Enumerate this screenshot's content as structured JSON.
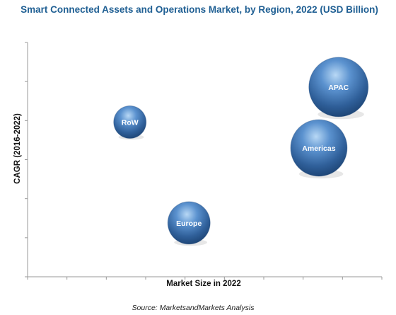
{
  "chart_data": {
    "type": "bubble",
    "title": "Smart Connected Assets and Operations Market, by Region, 2022 (USD Billion)",
    "xlabel": "Market Size in 2022",
    "ylabel": "CAGR (2016-2022)",
    "source": "Source: MarketsandMarkets Analysis",
    "tick_labels_shown": false,
    "grid": false,
    "bubble_color": "#3f73ad",
    "bubble_highlight": "#b8d8f5",
    "bubble_shadow": "#1f4778",
    "axis_color": "#9a9a9a",
    "x_ticks": 9,
    "y_ticks": 6,
    "points": [
      {
        "label": "APAC",
        "x": 7.9,
        "y": 8.1,
        "size": 4.2
      },
      {
        "label": "Americas",
        "x": 7.4,
        "y": 5.5,
        "size": 4.0
      },
      {
        "label": "RoW",
        "x": 2.6,
        "y": 6.6,
        "size": 2.3
      },
      {
        "label": "Europe",
        "x": 4.1,
        "y": 2.3,
        "size": 3.0
      }
    ],
    "xlim": [
      0,
      9
    ],
    "ylim": [
      0,
      10
    ]
  }
}
